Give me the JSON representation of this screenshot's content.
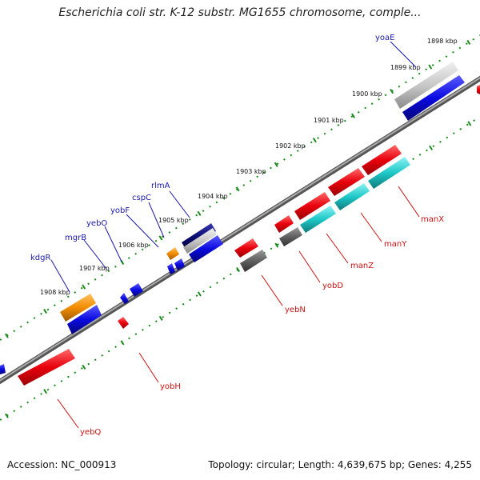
{
  "title": "Escherichia coli str. K-12 substr. MG1655 chromosome, comple...",
  "footer": {
    "accession": "Accession: NC_000913",
    "summary": "Topology: circular; Length: 4,639,675 bp; Genes: 4,255"
  },
  "ticks": [
    "1898 kbp",
    "1899 kbp",
    "1900 kbp",
    "1901 kbp",
    "1902 kbp",
    "1903 kbp",
    "1904 kbp",
    "1905 kbp",
    "1906 kbp",
    "1907 kbp",
    "1908 kbp"
  ],
  "genes_forward": [
    "yoaE",
    "rlmA",
    "cspC",
    "yobF",
    "yebO",
    "mgrB",
    "kdgR"
  ],
  "genes_reverse": [
    "manX",
    "manY",
    "manZ",
    "yobD",
    "yebN",
    "yobH",
    "yebQ"
  ],
  "colors": {
    "red": "#e8000b",
    "blue": "#0a0ae0",
    "cyan": "#1ec8c8",
    "orange": "#f28c00",
    "navy": "#0a0a70",
    "gray": "#c8c8c8",
    "darkgray": "#606060",
    "backbone": "#808080",
    "tickgreen": "#1a8a1a"
  }
}
